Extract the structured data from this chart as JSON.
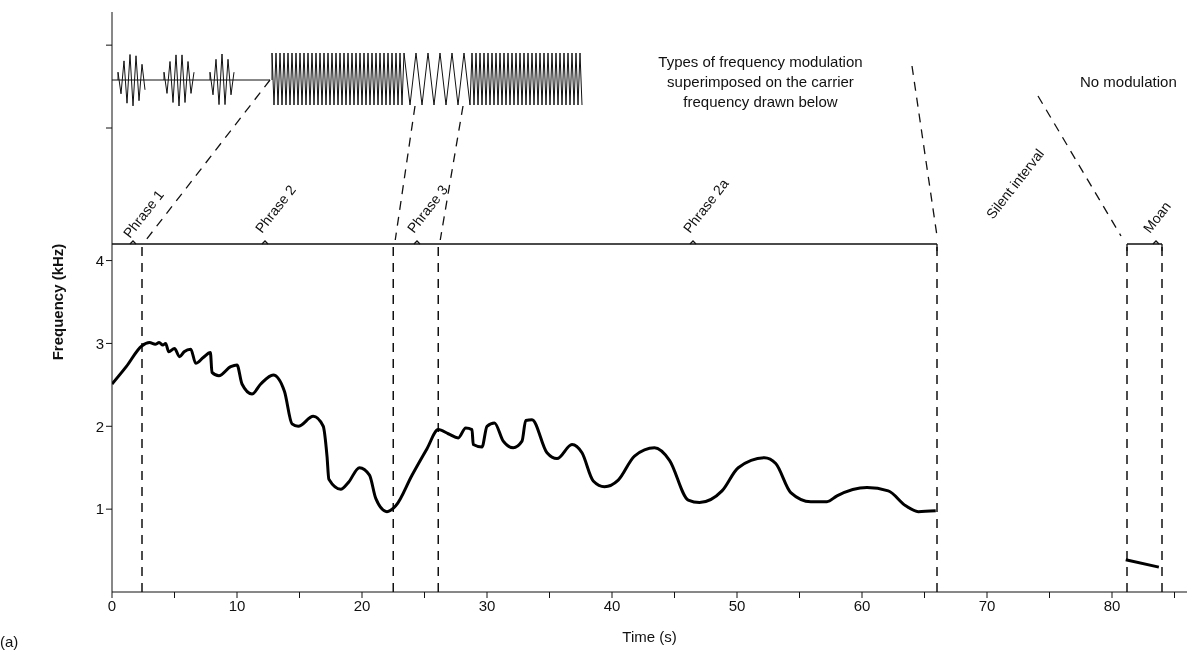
{
  "chart_data": {
    "type": "line",
    "xlabel": "Time (s)",
    "ylabel": "Frequency (kHz)",
    "xlim": [
      0,
      86
    ],
    "xticks": [
      0,
      {
        "value": 5,
        "label": null
      },
      10,
      {
        "value": 15,
        "label": null
      },
      20,
      {
        "value": 25,
        "label": null
      },
      30,
      {
        "value": 35,
        "label": null
      },
      40,
      {
        "value": 45,
        "label": null
      },
      50,
      {
        "value": 55,
        "label": null
      },
      60,
      {
        "value": 65,
        "label": null
      },
      70,
      {
        "value": 75,
        "label": null
      },
      80,
      {
        "value": 85,
        "label": null
      }
    ],
    "ylim": [
      0,
      7
    ],
    "yticks": [
      1,
      2,
      3,
      4,
      {
        "value": 5.6,
        "label": null
      },
      {
        "value": 6.6,
        "label": null
      }
    ],
    "series": [
      {
        "color": "#000000",
        "x": [
          0,
          1.14,
          2.38,
          3.0,
          3.46,
          3.77,
          4.07,
          4.29,
          4.54,
          5.0,
          5.4,
          5.77,
          6.3,
          6.7,
          7.3,
          7.87,
          8.0,
          8.55,
          9.5,
          10.0,
          10.4,
          11.2,
          11.9,
          12.9,
          13.8,
          14.4,
          14.9,
          16.1,
          16.9,
          17.2,
          17.35,
          18.3,
          18.9,
          19.8,
          20.6,
          21.1,
          22.0,
          22.7,
          24.0,
          25.2,
          26.1,
          26.9,
          27.7,
          28.3,
          28.8,
          28.9,
          29.6,
          30.0,
          30.6,
          31.3,
          32.1,
          32.8,
          33.1,
          33.6,
          34.8,
          35.6,
          36.8,
          37.6,
          38.5,
          39.4,
          40.5,
          41.8,
          43.4,
          44.6,
          46.1,
          47.0,
          48.8,
          50.1,
          52.2,
          53.1,
          54.3,
          55.9,
          57.2,
          58.0,
          60.4,
          62.1,
          63.5,
          64.5,
          65.9,
          73,
          81.1,
          83.75
        ],
        "values": [
          2.51,
          2.72,
          2.97,
          3.01,
          2.99,
          3.01,
          2.98,
          3.0,
          2.9,
          2.94,
          2.84,
          2.9,
          2.93,
          2.76,
          2.83,
          2.89,
          2.65,
          2.61,
          2.72,
          2.74,
          2.51,
          2.39,
          2.51,
          2.62,
          2.42,
          2.03,
          2.0,
          2.12,
          2.0,
          1.64,
          1.36,
          1.24,
          1.32,
          1.5,
          1.41,
          1.13,
          0.97,
          1.04,
          1.41,
          1.73,
          1.96,
          1.91,
          1.86,
          1.98,
          1.96,
          1.78,
          1.75,
          2.0,
          2.04,
          1.82,
          1.74,
          1.82,
          2.07,
          2.08,
          1.68,
          1.61,
          1.78,
          1.68,
          1.34,
          1.27,
          1.35,
          1.64,
          1.74,
          1.59,
          1.11,
          1.08,
          1.22,
          1.5,
          1.62,
          1.55,
          1.2,
          1.09,
          1.09,
          1.16,
          1.26,
          1.22,
          1.04,
          0.97,
          0.98,
          null,
          0.39,
          0.3
        ]
      },
      {
        "color": "#111111",
        "x": [
          0,
          66,
          73,
          81.2,
          84
        ],
        "values": [
          4.2,
          4.2,
          null,
          4.2,
          4.2
        ]
      }
    ],
    "ref_lines": [
      {
        "axis": "x",
        "value": 2.4,
        "line_style": "dashed"
      },
      {
        "axis": "x",
        "value": 22.5,
        "line_style": "dashed"
      },
      {
        "axis": "x",
        "value": 26.1,
        "line_style": "dashed"
      },
      {
        "axis": "x",
        "value": 66,
        "line_style": "dashed"
      },
      {
        "axis": "x",
        "value": 81.2,
        "line_style": "dashed"
      },
      {
        "axis": "x",
        "value": 84,
        "line_style": "dashed"
      }
    ],
    "annotations": [
      "Phrase 1",
      "Phrase 2",
      "Phrase 3",
      "Phrase 2a",
      "Silent interval",
      "Moan",
      "Types of frequency modulation superimposed on the carrier frequency drawn below",
      "No modulation",
      "(a)"
    ]
  }
}
